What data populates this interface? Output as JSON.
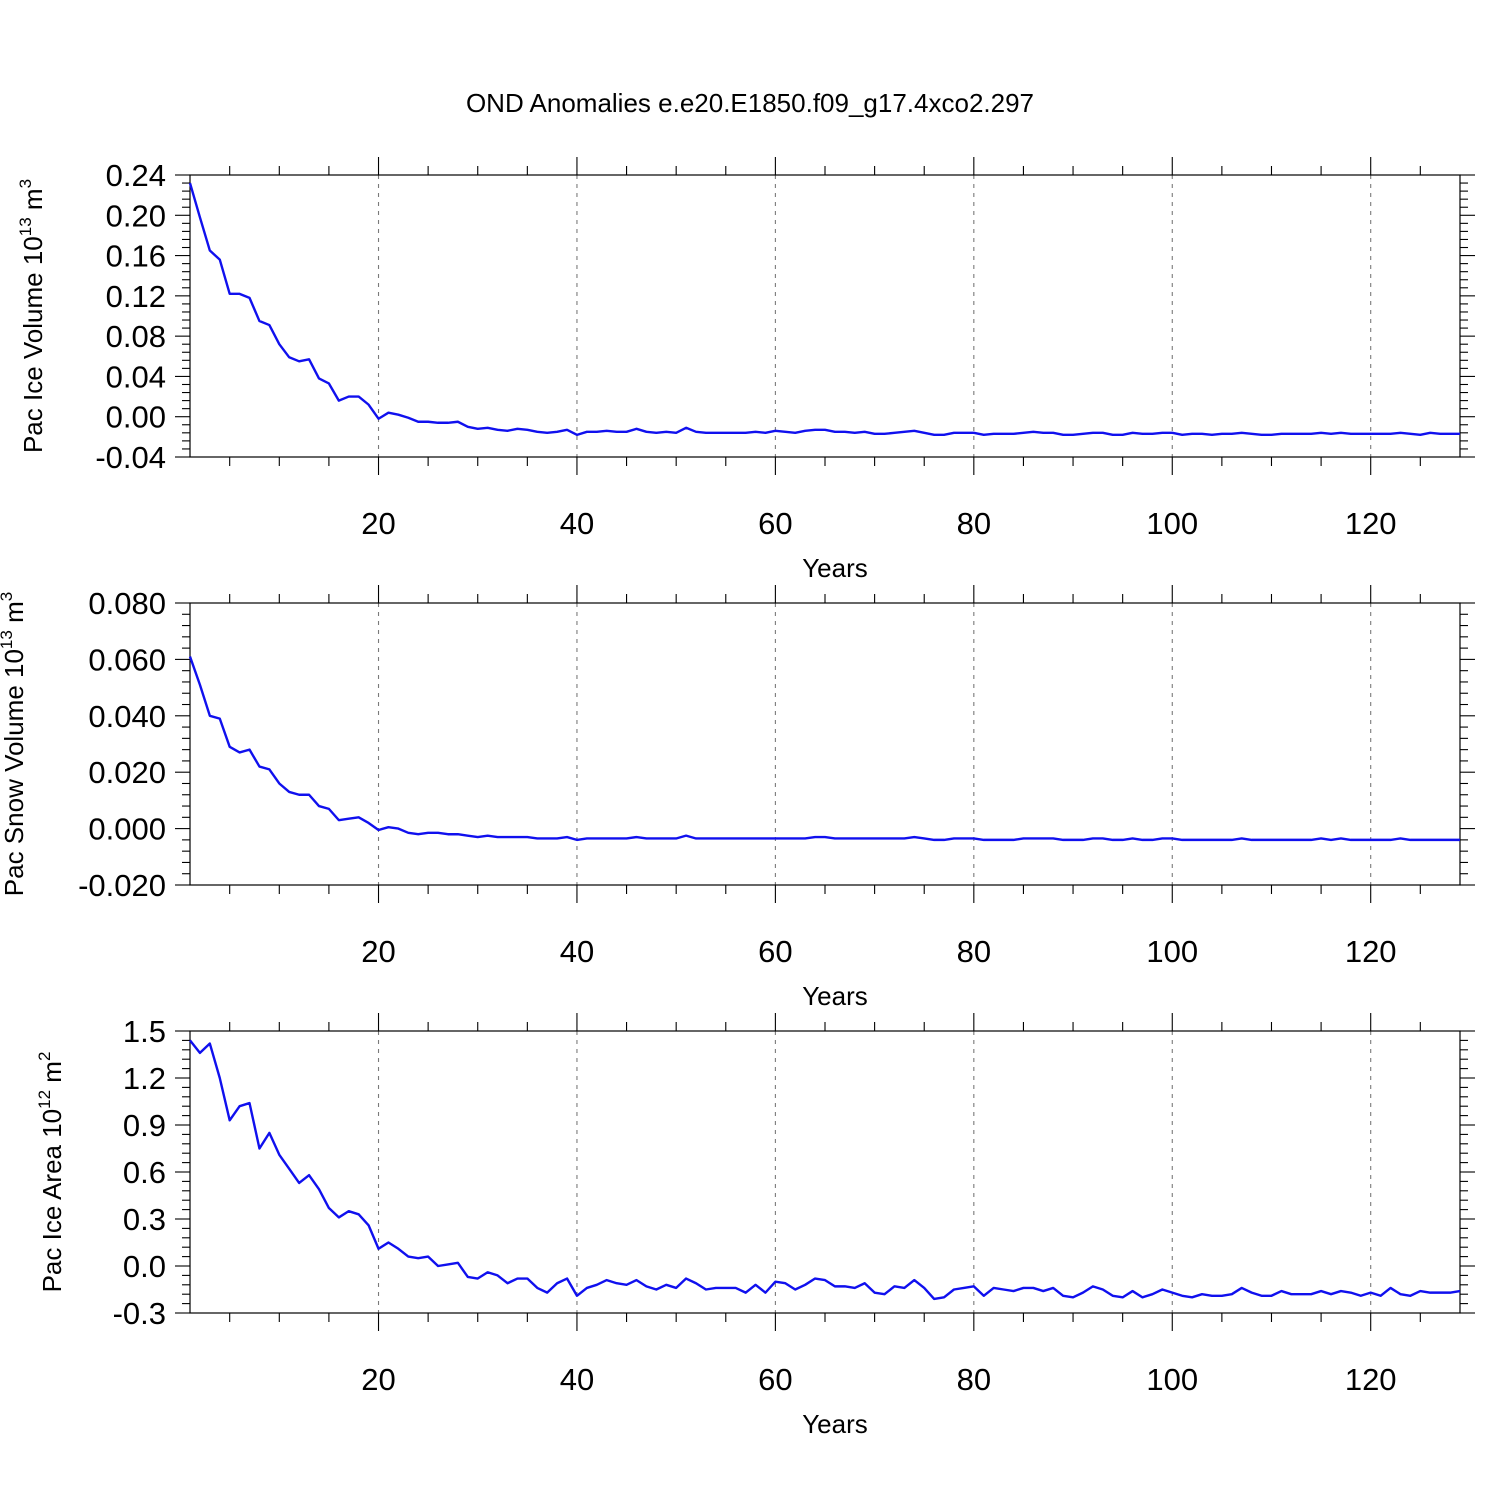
{
  "figure": {
    "title": "OND Anomalies e.e20.E1850.f09_g17.4xco2.297"
  },
  "colors": {
    "series": "#1010ee",
    "axis": "#000000",
    "grid": "#7a7a7a"
  },
  "chart_data": [
    {
      "type": "line",
      "title": "",
      "xlabel": "Years",
      "ylabel": {
        "base": "Pac Ice Volume 10",
        "exp": "13",
        "unit": " m",
        "unit_exp": "3"
      },
      "xlim": [
        1,
        129
      ],
      "ylim": [
        -0.04,
        0.24
      ],
      "xticks": [
        20,
        40,
        60,
        80,
        100,
        120
      ],
      "xtick_labels": [
        "20",
        "40",
        "60",
        "80",
        "100",
        "120"
      ],
      "yticks": [
        -0.04,
        0.0,
        0.04,
        0.08,
        0.12,
        0.16,
        0.2,
        0.24
      ],
      "ytick_labels": [
        "-0.04",
        "0.00",
        "0.04",
        "0.08",
        "0.12",
        "0.16",
        "0.20",
        "0.24"
      ],
      "grid": "x-dashed",
      "series": [
        {
          "color": "#1010ee",
          "x_start": 1,
          "values": [
            0.232,
            0.198,
            0.165,
            0.156,
            0.122,
            0.122,
            0.118,
            0.095,
            0.091,
            0.072,
            0.059,
            0.055,
            0.057,
            0.038,
            0.033,
            0.016,
            0.02,
            0.02,
            0.012,
            -0.002,
            0.004,
            0.002,
            -0.001,
            -0.005,
            -0.005,
            -0.006,
            -0.006,
            -0.005,
            -0.01,
            -0.012,
            -0.011,
            -0.013,
            -0.014,
            -0.012,
            -0.013,
            -0.015,
            -0.016,
            -0.015,
            -0.013,
            -0.018,
            -0.015,
            -0.015,
            -0.014,
            -0.015,
            -0.015,
            -0.012,
            -0.015,
            -0.016,
            -0.015,
            -0.016,
            -0.011,
            -0.015,
            -0.016,
            -0.016,
            -0.016,
            -0.016,
            -0.016,
            -0.015,
            -0.016,
            -0.014,
            -0.015,
            -0.016,
            -0.014,
            -0.013,
            -0.013,
            -0.015,
            -0.015,
            -0.016,
            -0.015,
            -0.017,
            -0.017,
            -0.016,
            -0.015,
            -0.014,
            -0.016,
            -0.018,
            -0.018,
            -0.016,
            -0.016,
            -0.016,
            -0.018,
            -0.017,
            -0.017,
            -0.017,
            -0.016,
            -0.015,
            -0.016,
            -0.016,
            -0.018,
            -0.018,
            -0.017,
            -0.016,
            -0.016,
            -0.018,
            -0.018,
            -0.016,
            -0.017,
            -0.017,
            -0.016,
            -0.016,
            -0.018,
            -0.017,
            -0.017,
            -0.018,
            -0.017,
            -0.017,
            -0.016,
            -0.017,
            -0.018,
            -0.018,
            -0.017,
            -0.017,
            -0.017,
            -0.017,
            -0.016,
            -0.017,
            -0.016,
            -0.017,
            -0.017,
            -0.017,
            -0.017,
            -0.017,
            -0.016,
            -0.017,
            -0.018,
            -0.016,
            -0.017,
            -0.017,
            -0.017
          ]
        }
      ]
    },
    {
      "type": "line",
      "title": "",
      "xlabel": "Years",
      "ylabel": {
        "base": "Pac Snow Volume 10",
        "exp": "13",
        "unit": " m",
        "unit_exp": "3"
      },
      "xlim": [
        1,
        129
      ],
      "ylim": [
        -0.02,
        0.08
      ],
      "xticks": [
        20,
        40,
        60,
        80,
        100,
        120
      ],
      "xtick_labels": [
        "20",
        "40",
        "60",
        "80",
        "100",
        "120"
      ],
      "yticks": [
        -0.02,
        0.0,
        0.02,
        0.04,
        0.06,
        0.08
      ],
      "ytick_labels": [
        "-0.020",
        "0.000",
        "0.020",
        "0.040",
        "0.060",
        "0.080"
      ],
      "grid": "x-dashed",
      "series": [
        {
          "color": "#1010ee",
          "x_start": 1,
          "values": [
            0.061,
            0.051,
            0.04,
            0.039,
            0.029,
            0.027,
            0.028,
            0.022,
            0.021,
            0.016,
            0.013,
            0.012,
            0.012,
            0.008,
            0.007,
            0.003,
            0.0035,
            0.004,
            0.002,
            -0.0005,
            0.0005,
            0.0,
            -0.0015,
            -0.002,
            -0.0015,
            -0.0015,
            -0.002,
            -0.002,
            -0.0025,
            -0.003,
            -0.0025,
            -0.003,
            -0.003,
            -0.003,
            -0.003,
            -0.0035,
            -0.0035,
            -0.0035,
            -0.003,
            -0.004,
            -0.0035,
            -0.0035,
            -0.0035,
            -0.0035,
            -0.0035,
            -0.003,
            -0.0035,
            -0.0035,
            -0.0035,
            -0.0035,
            -0.0025,
            -0.0035,
            -0.0035,
            -0.0035,
            -0.0035,
            -0.0035,
            -0.0035,
            -0.0035,
            -0.0035,
            -0.0035,
            -0.0035,
            -0.0035,
            -0.0035,
            -0.003,
            -0.003,
            -0.0035,
            -0.0035,
            -0.0035,
            -0.0035,
            -0.0035,
            -0.0035,
            -0.0035,
            -0.0035,
            -0.003,
            -0.0035,
            -0.004,
            -0.004,
            -0.0035,
            -0.0035,
            -0.0035,
            -0.004,
            -0.004,
            -0.004,
            -0.004,
            -0.0035,
            -0.0035,
            -0.0035,
            -0.0035,
            -0.004,
            -0.004,
            -0.004,
            -0.0035,
            -0.0035,
            -0.004,
            -0.004,
            -0.0035,
            -0.004,
            -0.004,
            -0.0035,
            -0.0035,
            -0.004,
            -0.004,
            -0.004,
            -0.004,
            -0.004,
            -0.004,
            -0.0035,
            -0.004,
            -0.004,
            -0.004,
            -0.004,
            -0.004,
            -0.004,
            -0.004,
            -0.0035,
            -0.004,
            -0.0035,
            -0.004,
            -0.004,
            -0.004,
            -0.004,
            -0.004,
            -0.0035,
            -0.004,
            -0.004,
            -0.004,
            -0.004,
            -0.004,
            -0.004
          ]
        }
      ]
    },
    {
      "type": "line",
      "title": "",
      "xlabel": "Years",
      "ylabel": {
        "base": "Pac Ice Area 10",
        "exp": "12",
        "unit": " m",
        "unit_exp": "2"
      },
      "xlim": [
        1,
        129
      ],
      "ylim": [
        -0.3,
        1.5
      ],
      "xticks": [
        20,
        40,
        60,
        80,
        100,
        120
      ],
      "xtick_labels": [
        "20",
        "40",
        "60",
        "80",
        "100",
        "120"
      ],
      "yticks": [
        -0.3,
        0.0,
        0.3,
        0.6,
        0.9,
        1.2,
        1.5
      ],
      "ytick_labels": [
        "-0.3",
        "0.0",
        "0.3",
        "0.6",
        "0.9",
        "1.2",
        "1.5"
      ],
      "grid": "x-dashed",
      "series": [
        {
          "color": "#1010ee",
          "x_start": 1,
          "values": [
            1.44,
            1.36,
            1.42,
            1.2,
            0.93,
            1.02,
            1.04,
            0.75,
            0.85,
            0.71,
            0.62,
            0.53,
            0.58,
            0.49,
            0.37,
            0.31,
            0.35,
            0.33,
            0.26,
            0.11,
            0.15,
            0.11,
            0.06,
            0.05,
            0.06,
            0.0,
            0.01,
            0.02,
            -0.07,
            -0.08,
            -0.04,
            -0.06,
            -0.11,
            -0.08,
            -0.08,
            -0.14,
            -0.17,
            -0.11,
            -0.08,
            -0.19,
            -0.14,
            -0.12,
            -0.09,
            -0.11,
            -0.12,
            -0.09,
            -0.13,
            -0.15,
            -0.12,
            -0.14,
            -0.08,
            -0.11,
            -0.15,
            -0.14,
            -0.14,
            -0.14,
            -0.17,
            -0.12,
            -0.17,
            -0.1,
            -0.11,
            -0.15,
            -0.12,
            -0.08,
            -0.09,
            -0.13,
            -0.13,
            -0.14,
            -0.11,
            -0.17,
            -0.18,
            -0.13,
            -0.14,
            -0.09,
            -0.14,
            -0.21,
            -0.2,
            -0.15,
            -0.14,
            -0.13,
            -0.19,
            -0.14,
            -0.15,
            -0.16,
            -0.14,
            -0.14,
            -0.16,
            -0.14,
            -0.19,
            -0.2,
            -0.17,
            -0.13,
            -0.15,
            -0.19,
            -0.2,
            -0.16,
            -0.2,
            -0.18,
            -0.15,
            -0.17,
            -0.19,
            -0.2,
            -0.18,
            -0.19,
            -0.19,
            -0.18,
            -0.14,
            -0.17,
            -0.19,
            -0.19,
            -0.16,
            -0.18,
            -0.18,
            -0.18,
            -0.16,
            -0.18,
            -0.16,
            -0.17,
            -0.19,
            -0.17,
            -0.19,
            -0.14,
            -0.18,
            -0.19,
            -0.16,
            -0.17,
            -0.17,
            -0.17,
            -0.16
          ]
        }
      ]
    }
  ]
}
